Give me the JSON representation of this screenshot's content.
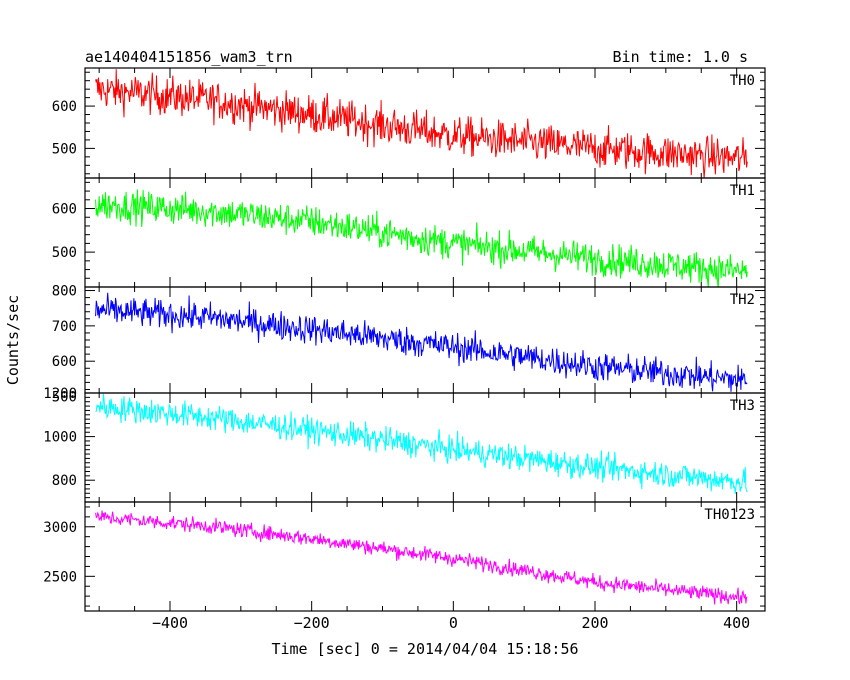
{
  "title_left": "ae140404151856_wam3_trn",
  "title_right": "Bin time: 1.0 s",
  "xlabel": "Time [sec] 0 = 2014/04/04 15:18:56",
  "ylabel": "Counts/sec",
  "chart_data": {
    "type": "line",
    "title": "ae140404151856_wam3_trn",
    "subtitle": "Bin time: 1.0 s",
    "xlabel": "Time [sec] 0 = 2014/04/04 15:18:56",
    "ylabel": "Counts/sec",
    "xlim": [
      -520,
      440
    ],
    "x_range": [
      -505,
      415
    ],
    "x_ticks": [
      -400,
      -200,
      0,
      200,
      400
    ],
    "grid": false,
    "panels": [
      {
        "name": "TH0",
        "color": "#ff0000",
        "ylim": [
          430,
          690
        ],
        "y_ticks": [
          500,
          600
        ],
        "start": 635,
        "end": 475,
        "noise": 42,
        "trend_points": [
          [
            -505,
            640
          ],
          [
            -350,
            615
          ],
          [
            -200,
            580
          ],
          [
            0,
            530
          ],
          [
            200,
            500
          ],
          [
            415,
            475
          ]
        ]
      },
      {
        "name": "TH1",
        "color": "#00ff00",
        "ylim": [
          420,
          670
        ],
        "y_ticks": [
          500,
          600
        ],
        "start": 605,
        "end": 455,
        "noise": 34,
        "trend_points": [
          [
            -505,
            610
          ],
          [
            -350,
            595
          ],
          [
            -200,
            570
          ],
          [
            0,
            520
          ],
          [
            200,
            485
          ],
          [
            415,
            455
          ]
        ]
      },
      {
        "name": "TH2",
        "color": "#0000ff",
        "ylim": [
          510,
          810
        ],
        "y_ticks": [
          500,
          600,
          700,
          800
        ],
        "start": 740,
        "end": 545,
        "noise": 38,
        "trend_points": [
          [
            -505,
            745
          ],
          [
            -350,
            725
          ],
          [
            -200,
            690
          ],
          [
            0,
            640
          ],
          [
            200,
            585
          ],
          [
            415,
            545
          ]
        ]
      },
      {
        "name": "TH3",
        "color": "#00ffff",
        "ylim": [
          700,
          1200
        ],
        "y_ticks": [
          800,
          1000,
          1200
        ],
        "start": 1140,
        "end": 790,
        "noise": 55,
        "trend_points": [
          [
            -505,
            1140
          ],
          [
            -350,
            1090
          ],
          [
            -200,
            1030
          ],
          [
            0,
            940
          ],
          [
            200,
            860
          ],
          [
            415,
            790
          ]
        ]
      },
      {
        "name": "TH0123",
        "color": "#ff00ff",
        "ylim": [
          2150,
          3250
        ],
        "y_ticks": [
          2500,
          3000
        ],
        "start": 3080,
        "end": 2280,
        "noise": 70,
        "trend_points": [
          [
            -505,
            3100
          ],
          [
            -350,
            3010
          ],
          [
            -200,
            2880
          ],
          [
            0,
            2680
          ],
          [
            200,
            2440
          ],
          [
            415,
            2280
          ]
        ]
      }
    ]
  }
}
